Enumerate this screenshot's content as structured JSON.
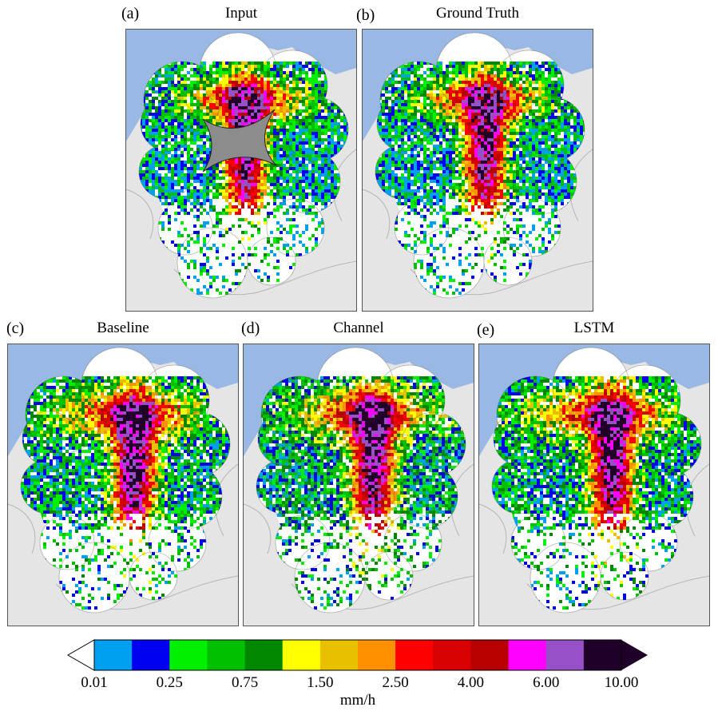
{
  "panels": [
    {
      "id": "a",
      "label": "(a)",
      "title": "Input",
      "masked": true
    },
    {
      "id": "b",
      "label": "(b)",
      "title": "Ground Truth",
      "masked": false
    },
    {
      "id": "c",
      "label": "(c)",
      "title": "Baseline",
      "masked": false
    },
    {
      "id": "d",
      "label": "(d)",
      "title": "Channel",
      "masked": false
    },
    {
      "id": "e",
      "label": "(e)",
      "title": "LSTM",
      "masked": false
    }
  ],
  "colorbar": {
    "unit": "mm/h",
    "tick_labels": [
      "0.01",
      "0.25",
      "0.75",
      "1.50",
      "2.50",
      "4.00",
      "6.00",
      "10.00"
    ],
    "colors": [
      "#ffffff",
      "#00a0f0",
      "#0000f0",
      "#00f000",
      "#00c000",
      "#008800",
      "#ffff00",
      "#e8c000",
      "#ff9000",
      "#ff0000",
      "#d80000",
      "#b80000",
      "#ff00ff",
      "#9850c8",
      "#200028"
    ],
    "mask_color": "#8c8c8c",
    "sea_color": "#9ab8e4",
    "land_color": "#e5e5e5"
  }
}
